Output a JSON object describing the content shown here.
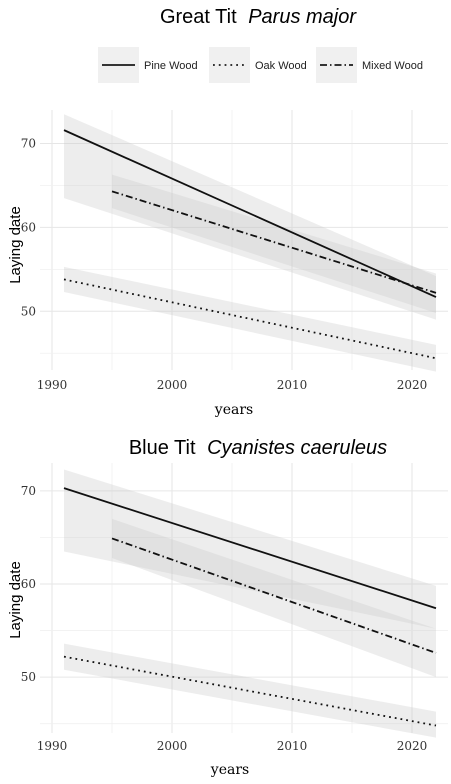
{
  "legend": {
    "entries": [
      {
        "label": "Pine Wood",
        "dash": "solid"
      },
      {
        "label": "Oak Wood",
        "dash": "dotted"
      },
      {
        "label": "Mixed Wood",
        "dash": "dashdot"
      }
    ]
  },
  "chart_data": [
    {
      "type": "line",
      "title": "Great Tit",
      "title_italic": "Parus major",
      "xlabel": "years",
      "ylabel": "Laying date",
      "xlim": [
        1989,
        2023
      ],
      "ylim": [
        43,
        74
      ],
      "x_ticks": [
        1990,
        2000,
        2010,
        2020
      ],
      "y_ticks": [
        50,
        60,
        70
      ],
      "grid": true,
      "legend_position": "top",
      "series": [
        {
          "name": "Pine Wood",
          "dash": "solid",
          "x": [
            1991,
            2022
          ],
          "y": [
            71.6,
            51.7
          ],
          "ci_lower": [
            63.5,
            49.0
          ],
          "ci_upper": [
            73.5,
            54.2
          ]
        },
        {
          "name": "Oak Wood",
          "dash": "dotted",
          "x": [
            1991,
            2022
          ],
          "y": [
            53.8,
            44.4
          ],
          "ci_lower": [
            52.3,
            42.8
          ],
          "ci_upper": [
            55.3,
            46.0
          ]
        },
        {
          "name": "Mixed Wood",
          "dash": "dashdot",
          "x": [
            1995,
            2022
          ],
          "y": [
            64.3,
            52.2
          ],
          "ci_lower": [
            62.3,
            49.8
          ],
          "ci_upper": [
            66.3,
            54.5
          ]
        }
      ]
    },
    {
      "type": "line",
      "title": "Blue Tit",
      "title_italic": "Cyanistes caeruleus",
      "xlabel": "years",
      "ylabel": "Laying date",
      "xlim": [
        1989,
        2023
      ],
      "ylim": [
        44,
        73
      ],
      "x_ticks": [
        1990,
        2000,
        2010,
        2020
      ],
      "y_ticks": [
        50,
        60,
        70
      ],
      "grid": true,
      "series": [
        {
          "name": "Pine Wood",
          "dash": "solid",
          "x": [
            1991,
            2022
          ],
          "y": [
            70.3,
            57.4
          ],
          "ci_lower": [
            63.5,
            55.2
          ],
          "ci_upper": [
            72.3,
            59.8
          ]
        },
        {
          "name": "Oak Wood",
          "dash": "dotted",
          "x": [
            1991,
            2022
          ],
          "y": [
            52.2,
            44.8
          ],
          "ci_lower": [
            50.8,
            43.5
          ],
          "ci_upper": [
            53.6,
            46.3
          ]
        },
        {
          "name": "Mixed Wood",
          "dash": "dashdot",
          "x": [
            1995,
            2022
          ],
          "y": [
            64.9,
            52.6
          ],
          "ci_lower": [
            62.8,
            50.0
          ],
          "ci_upper": [
            67.0,
            55.2
          ]
        }
      ]
    }
  ]
}
